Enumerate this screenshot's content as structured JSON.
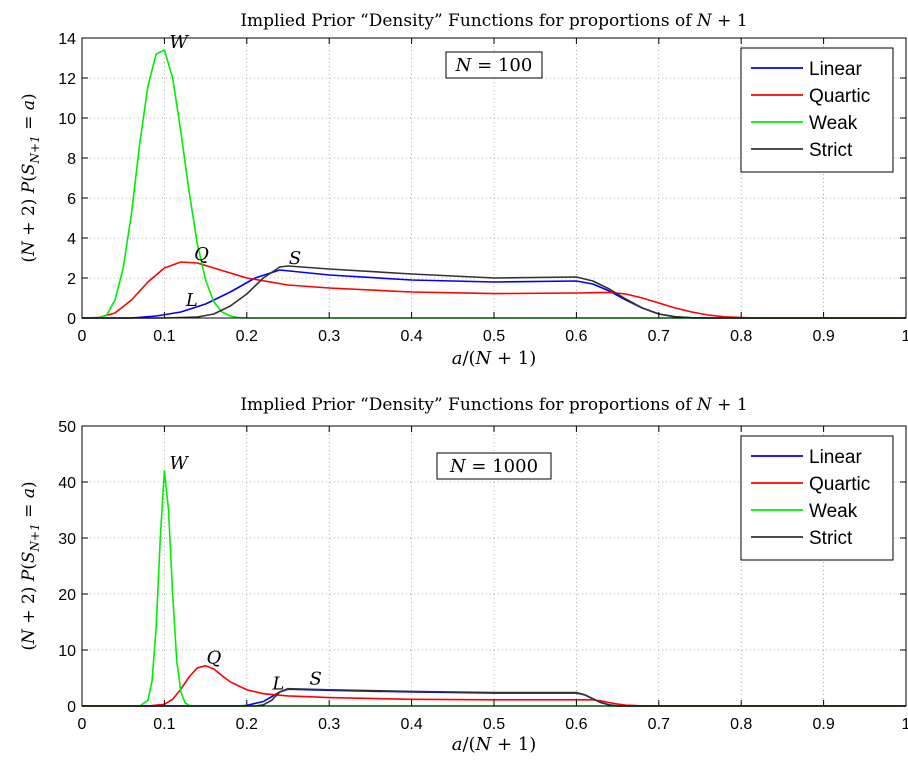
{
  "chart_data": [
    {
      "type": "line",
      "title": "Implied Prior “Density” Functions for proportions of N + 1",
      "xlabel": "a/(N + 1)",
      "ylabel": "(N + 2) P(S_{N+1} = a)",
      "annotation": "N = 100",
      "xlim": [
        0,
        1
      ],
      "ylim": [
        0,
        14
      ],
      "xticks": [
        "0",
        "0.1",
        "0.2",
        "0.3",
        "0.4",
        "0.5",
        "0.6",
        "0.7",
        "0.8",
        "0.9",
        "1"
      ],
      "yticks": [
        "0",
        "2",
        "4",
        "6",
        "8",
        "10",
        "12",
        "14"
      ],
      "grid": true,
      "legend_position": "top-right",
      "series": [
        {
          "name": "Linear",
          "color": "#0000ff",
          "curve_label": "L",
          "x": [
            0,
            0.06,
            0.09,
            0.12,
            0.15,
            0.18,
            0.21,
            0.24,
            0.3,
            0.4,
            0.5,
            0.6,
            0.62,
            0.64,
            0.66,
            0.68,
            0.7,
            0.72,
            0.74,
            0.76,
            1
          ],
          "y": [
            0,
            0,
            0.1,
            0.3,
            0.7,
            1.3,
            2.0,
            2.4,
            2.15,
            1.9,
            1.8,
            1.85,
            1.7,
            1.35,
            0.9,
            0.5,
            0.2,
            0.06,
            0.01,
            0,
            0
          ]
        },
        {
          "name": "Quartic",
          "color": "#ff0000",
          "curve_label": "Q",
          "x": [
            0,
            0.02,
            0.04,
            0.06,
            0.08,
            0.1,
            0.12,
            0.14,
            0.16,
            0.2,
            0.25,
            0.3,
            0.4,
            0.5,
            0.6,
            0.64,
            0.66,
            0.68,
            0.7,
            0.72,
            0.74,
            0.76,
            0.78,
            0.8,
            0.82,
            1
          ],
          "y": [
            0,
            0.02,
            0.25,
            0.9,
            1.8,
            2.5,
            2.8,
            2.75,
            2.5,
            2.0,
            1.65,
            1.5,
            1.3,
            1.22,
            1.25,
            1.28,
            1.2,
            1.0,
            0.75,
            0.5,
            0.3,
            0.15,
            0.06,
            0.02,
            0,
            0
          ]
        },
        {
          "name": "Weak",
          "color": "#00ee00",
          "curve_label": "W",
          "x": [
            0,
            0.02,
            0.03,
            0.04,
            0.05,
            0.06,
            0.07,
            0.08,
            0.09,
            0.1,
            0.11,
            0.12,
            0.13,
            0.14,
            0.15,
            0.16,
            0.17,
            0.18,
            0.19,
            0.2,
            1
          ],
          "y": [
            0,
            0,
            0.15,
            0.9,
            2.5,
            5.2,
            8.7,
            11.6,
            13.2,
            13.4,
            12.0,
            9.3,
            6.3,
            3.7,
            1.9,
            0.8,
            0.3,
            0.1,
            0.02,
            0,
            0
          ]
        },
        {
          "name": "Strict",
          "color": "#333333",
          "curve_label": "S",
          "x": [
            0,
            0.1,
            0.14,
            0.16,
            0.18,
            0.2,
            0.22,
            0.24,
            0.25,
            0.3,
            0.4,
            0.5,
            0.6,
            0.62,
            0.64,
            0.66,
            0.68,
            0.7,
            0.72,
            0.74,
            0.76,
            1
          ],
          "y": [
            0,
            0,
            0.05,
            0.2,
            0.6,
            1.2,
            2.0,
            2.55,
            2.6,
            2.45,
            2.2,
            2.0,
            2.05,
            1.85,
            1.45,
            0.95,
            0.5,
            0.2,
            0.06,
            0.01,
            0,
            0
          ]
        }
      ]
    },
    {
      "type": "line",
      "title": "Implied Prior “Density” Functions for proportions of N + 1",
      "xlabel": "a/(N + 1)",
      "ylabel": "(N + 2) P(S_{N+1} = a)",
      "annotation": "N = 1000",
      "xlim": [
        0,
        1
      ],
      "ylim": [
        0,
        50
      ],
      "xticks": [
        "0",
        "0.1",
        "0.2",
        "0.3",
        "0.4",
        "0.5",
        "0.6",
        "0.7",
        "0.8",
        "0.9",
        "1"
      ],
      "yticks": [
        "0",
        "10",
        "20",
        "30",
        "40",
        "50"
      ],
      "grid": true,
      "legend_position": "top-right",
      "series": [
        {
          "name": "Linear",
          "color": "#0000ff",
          "curve_label": "L",
          "x": [
            0,
            0.19,
            0.2,
            0.22,
            0.24,
            0.25,
            0.3,
            0.4,
            0.5,
            0.6,
            0.61,
            0.62,
            0.63,
            0.64,
            0.65,
            1
          ],
          "y": [
            0,
            0,
            0.1,
            0.8,
            2.5,
            3.0,
            2.8,
            2.5,
            2.3,
            2.3,
            2.0,
            1.3,
            0.6,
            0.2,
            0,
            0
          ]
        },
        {
          "name": "Quartic",
          "color": "#ff0000",
          "curve_label": "Q",
          "x": [
            0,
            0.08,
            0.1,
            0.11,
            0.12,
            0.13,
            0.14,
            0.15,
            0.16,
            0.17,
            0.18,
            0.2,
            0.22,
            0.25,
            0.3,
            0.4,
            0.5,
            0.6,
            0.62,
            0.63,
            0.64,
            0.65,
            0.66,
            0.68,
            0.7,
            1
          ],
          "y": [
            0,
            0,
            0.3,
            1.2,
            3.0,
            5.2,
            6.8,
            7.2,
            6.6,
            5.4,
            4.3,
            2.9,
            2.2,
            1.8,
            1.5,
            1.2,
            1.1,
            1.1,
            1.1,
            0.9,
            0.6,
            0.35,
            0.15,
            0.02,
            0,
            0
          ]
        },
        {
          "name": "Weak",
          "color": "#00ee00",
          "curve_label": "W",
          "x": [
            0,
            0.07,
            0.08,
            0.085,
            0.09,
            0.095,
            0.1,
            0.105,
            0.11,
            0.115,
            0.12,
            0.125,
            0.13,
            0.14,
            1
          ],
          "y": [
            0,
            0,
            1.0,
            4.5,
            14.0,
            30.0,
            42.0,
            35.0,
            20.0,
            8.0,
            2.5,
            0.6,
            0.1,
            0,
            0
          ]
        },
        {
          "name": "Strict",
          "color": "#333333",
          "curve_label": "S",
          "x": [
            0,
            0.21,
            0.22,
            0.23,
            0.24,
            0.25,
            0.3,
            0.4,
            0.5,
            0.6,
            0.61,
            0.62,
            0.63,
            0.64,
            0.65,
            1
          ],
          "y": [
            0,
            0,
            0.2,
            1.0,
            2.5,
            3.1,
            2.9,
            2.6,
            2.4,
            2.4,
            2.0,
            1.3,
            0.6,
            0.2,
            0,
            0
          ]
        }
      ]
    }
  ]
}
